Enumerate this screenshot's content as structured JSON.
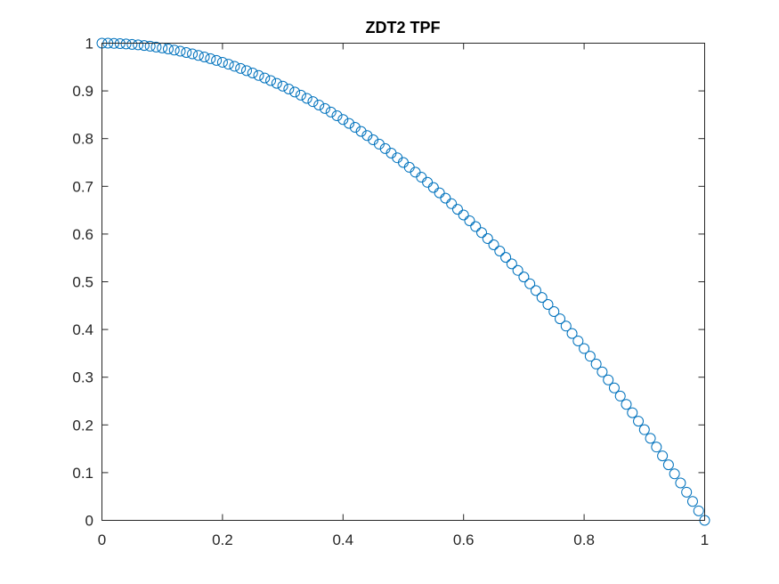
{
  "chart_data": {
    "type": "scatter",
    "title": "ZDT2 TPF",
    "xlabel": "",
    "ylabel": "",
    "xlim": [
      0,
      1
    ],
    "ylim": [
      0,
      1
    ],
    "xticks": [
      0,
      0.2,
      0.4,
      0.6,
      0.8,
      1
    ],
    "xtick_labels": [
      "0",
      "0.2",
      "0.4",
      "0.6",
      "0.8",
      "1"
    ],
    "yticks": [
      0,
      0.1,
      0.2,
      0.3,
      0.4,
      0.5,
      0.6,
      0.7,
      0.8,
      0.9,
      1
    ],
    "ytick_labels": [
      "0",
      "0.1",
      "0.2",
      "0.3",
      "0.4",
      "0.5",
      "0.6",
      "0.7",
      "0.8",
      "0.9",
      "1"
    ],
    "grid": false,
    "box": true,
    "marker": "circle-open",
    "marker_color": "#0072BD",
    "series": [
      {
        "x": [
          0,
          0.01,
          0.02,
          0.03,
          0.04,
          0.05,
          0.06,
          0.07,
          0.08,
          0.09,
          0.1,
          0.11,
          0.12,
          0.13,
          0.14,
          0.15,
          0.16,
          0.17,
          0.18,
          0.19,
          0.2,
          0.21,
          0.22,
          0.23,
          0.24,
          0.25,
          0.26,
          0.27,
          0.28,
          0.29,
          0.3,
          0.31,
          0.32,
          0.33,
          0.34,
          0.35,
          0.36,
          0.37,
          0.38,
          0.39,
          0.4,
          0.41,
          0.42,
          0.43,
          0.44,
          0.45,
          0.46,
          0.47,
          0.48,
          0.49,
          0.5,
          0.51,
          0.52,
          0.53,
          0.54,
          0.55,
          0.56,
          0.57,
          0.58,
          0.59,
          0.6,
          0.61,
          0.62,
          0.63,
          0.64,
          0.65,
          0.66,
          0.67,
          0.68,
          0.69,
          0.7,
          0.71,
          0.72,
          0.73,
          0.74,
          0.75,
          0.76,
          0.77,
          0.78,
          0.79,
          0.8,
          0.81,
          0.82,
          0.83,
          0.84,
          0.85,
          0.86,
          0.87,
          0.88,
          0.89,
          0.9,
          0.91,
          0.92,
          0.93,
          0.94,
          0.95,
          0.96,
          0.97,
          0.98,
          0.99,
          1
        ],
        "y": [
          1,
          0.9999,
          0.9996,
          0.9991,
          0.9984,
          0.9975,
          0.9964,
          0.9951,
          0.9936,
          0.9919,
          0.99,
          0.9879,
          0.9856,
          0.9831,
          0.9804,
          0.9775,
          0.9744,
          0.9711,
          0.9676,
          0.9639,
          0.96,
          0.9559,
          0.9516,
          0.9471,
          0.9424,
          0.9375,
          0.9324,
          0.9271,
          0.9216,
          0.9159,
          0.91,
          0.9039,
          0.8976,
          0.8911,
          0.8844,
          0.8775,
          0.8704,
          0.8631,
          0.8556,
          0.8479,
          0.84,
          0.8319,
          0.8236,
          0.8151,
          0.8064,
          0.7975,
          0.7884,
          0.7791,
          0.7696,
          0.7599,
          0.75,
          0.7399,
          0.7296,
          0.7191,
          0.7084,
          0.6975,
          0.6864,
          0.6751,
          0.6636,
          0.6519,
          0.64,
          0.6279,
          0.6156,
          0.6031,
          0.5904,
          0.5775,
          0.5644,
          0.5511,
          0.5376,
          0.5239,
          0.51,
          0.4959,
          0.4816,
          0.4671,
          0.4524,
          0.4375,
          0.4224,
          0.4071,
          0.3916,
          0.3759,
          0.36,
          0.3439,
          0.3276,
          0.3111,
          0.2944,
          0.2775,
          0.2604,
          0.2431,
          0.2256,
          0.2079,
          0.19,
          0.1719,
          0.1536,
          0.1351,
          0.1164,
          0.0975,
          0.0784,
          0.0591,
          0.0396,
          0.0199,
          0
        ]
      }
    ]
  }
}
